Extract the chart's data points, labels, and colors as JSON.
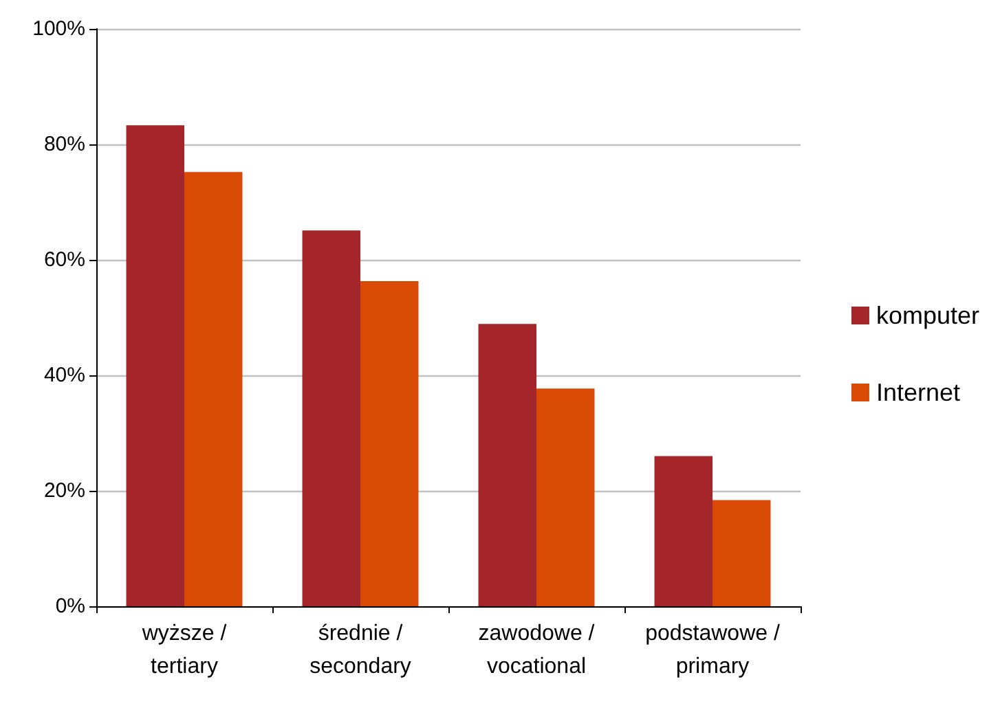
{
  "chart_data": {
    "type": "bar",
    "categories": [
      "wyższe / tertiary",
      "średnie / secondary",
      "zawodowe / vocational",
      "podstawowe / primary"
    ],
    "series": [
      {
        "name": "komputer",
        "color": "#a4262a",
        "values": [
          83.3,
          65.1,
          48.9,
          26.0
        ]
      },
      {
        "name": "Internet",
        "color": "#d94b04",
        "values": [
          75.2,
          56.3,
          37.7,
          18.4
        ]
      }
    ],
    "ylim": [
      0,
      100
    ],
    "yticks": [
      {
        "value": 0,
        "label": "0%"
      },
      {
        "value": 20,
        "label": "20%"
      },
      {
        "value": 40,
        "label": "40%"
      },
      {
        "value": 60,
        "label": "60%"
      },
      {
        "value": 80,
        "label": "80%"
      },
      {
        "value": 100,
        "label": "100%"
      }
    ],
    "grid": "y",
    "legend": "right"
  }
}
